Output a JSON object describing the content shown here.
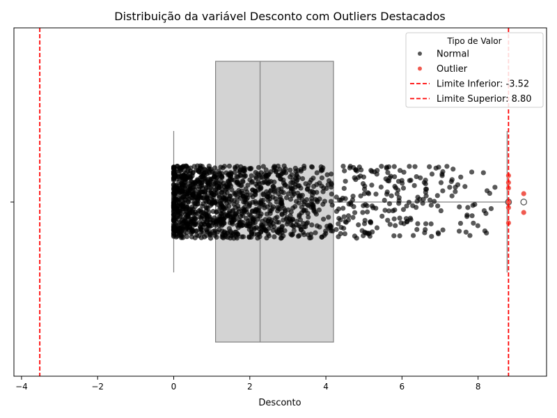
{
  "chart_data": {
    "type": "box-strip",
    "title": "Distribuição da variável Desconto com Outliers Destacados",
    "xlabel": "Desconto",
    "ylabel": "",
    "xlim": [
      -4.2,
      9.8
    ],
    "xticks": [
      -4,
      -2,
      0,
      2,
      4,
      6,
      8
    ],
    "grid": false,
    "box": {
      "q1": 1.1,
      "median": 2.27,
      "q3": 4.2,
      "whisker_low": 0.0,
      "whisker_high": 8.8,
      "fliers": [
        8.8,
        9.2
      ]
    },
    "limits": [
      {
        "name": "Limite Inferior: -3.52",
        "value": -3.52,
        "color": "#ff0000"
      },
      {
        "name": "Limite Superior: 8.80",
        "value": 8.8,
        "color": "#ff0000"
      }
    ],
    "points": {
      "normal_count": 1500,
      "normal_range": [
        0.0,
        8.8
      ],
      "normal_color": "#000000",
      "outliers": [
        8.8,
        8.8,
        8.8,
        8.8,
        8.8,
        8.8,
        9.2,
        9.2
      ],
      "outlier_color": "#f05a50"
    },
    "legend": {
      "title": "Tipo de Valor",
      "position": "upper-right",
      "items": [
        {
          "label": "Normal",
          "kind": "dot",
          "color": "#555555"
        },
        {
          "label": "Outlier",
          "kind": "dot",
          "color": "#f05a50"
        },
        {
          "label": "Limite Inferior: -3.52",
          "kind": "dash",
          "color": "#ff0000"
        },
        {
          "label": "Limite Superior: 8.80",
          "kind": "dash",
          "color": "#ff0000"
        }
      ]
    }
  }
}
